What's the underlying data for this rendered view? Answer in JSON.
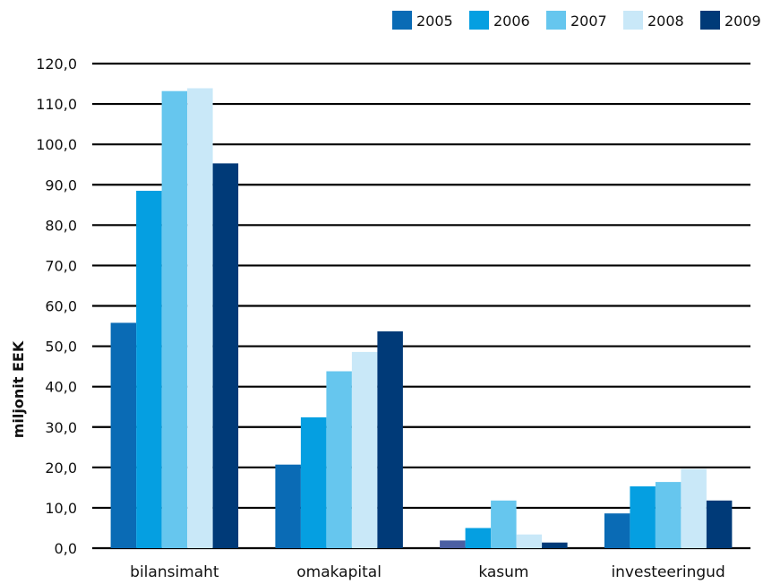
{
  "chart_data": {
    "type": "bar",
    "title": "",
    "xlabel": "",
    "ylabel": "miljonit EEK",
    "ylim": [
      0,
      120
    ],
    "yticks": [
      "0,0",
      "10,0",
      "20,0",
      "30,0",
      "40,0",
      "50,0",
      "60,0",
      "70,0",
      "80,0",
      "90,0",
      "100,0",
      "110,0",
      "120,0"
    ],
    "grid": true,
    "legend_position": "top-right",
    "categories": [
      "bilansimaht",
      "omakapital",
      "kasum",
      "investeeringud"
    ],
    "series": [
      {
        "name": "2005",
        "color": "#0a6bb5",
        "values": [
          55.8,
          20.7,
          0.2,
          8.6
        ]
      },
      {
        "name": "2006",
        "color": "#059fe1",
        "values": [
          88.5,
          32.4,
          5.0,
          15.3
        ]
      },
      {
        "name": "2007",
        "color": "#66c6ee",
        "values": [
          113.2,
          43.8,
          11.8,
          16.4
        ]
      },
      {
        "name": "2008",
        "color": "#c9e8f8",
        "values": [
          113.9,
          48.6,
          3.4,
          19.6
        ]
      },
      {
        "name": "2009",
        "color": "#003a78",
        "values": [
          95.3,
          53.7,
          1.4,
          11.8
        ]
      }
    ],
    "special_bar_colors": [
      {
        "category_index": 2,
        "series_index": 0,
        "color": "#4b5fa3",
        "value_override": 1.9
      }
    ]
  }
}
